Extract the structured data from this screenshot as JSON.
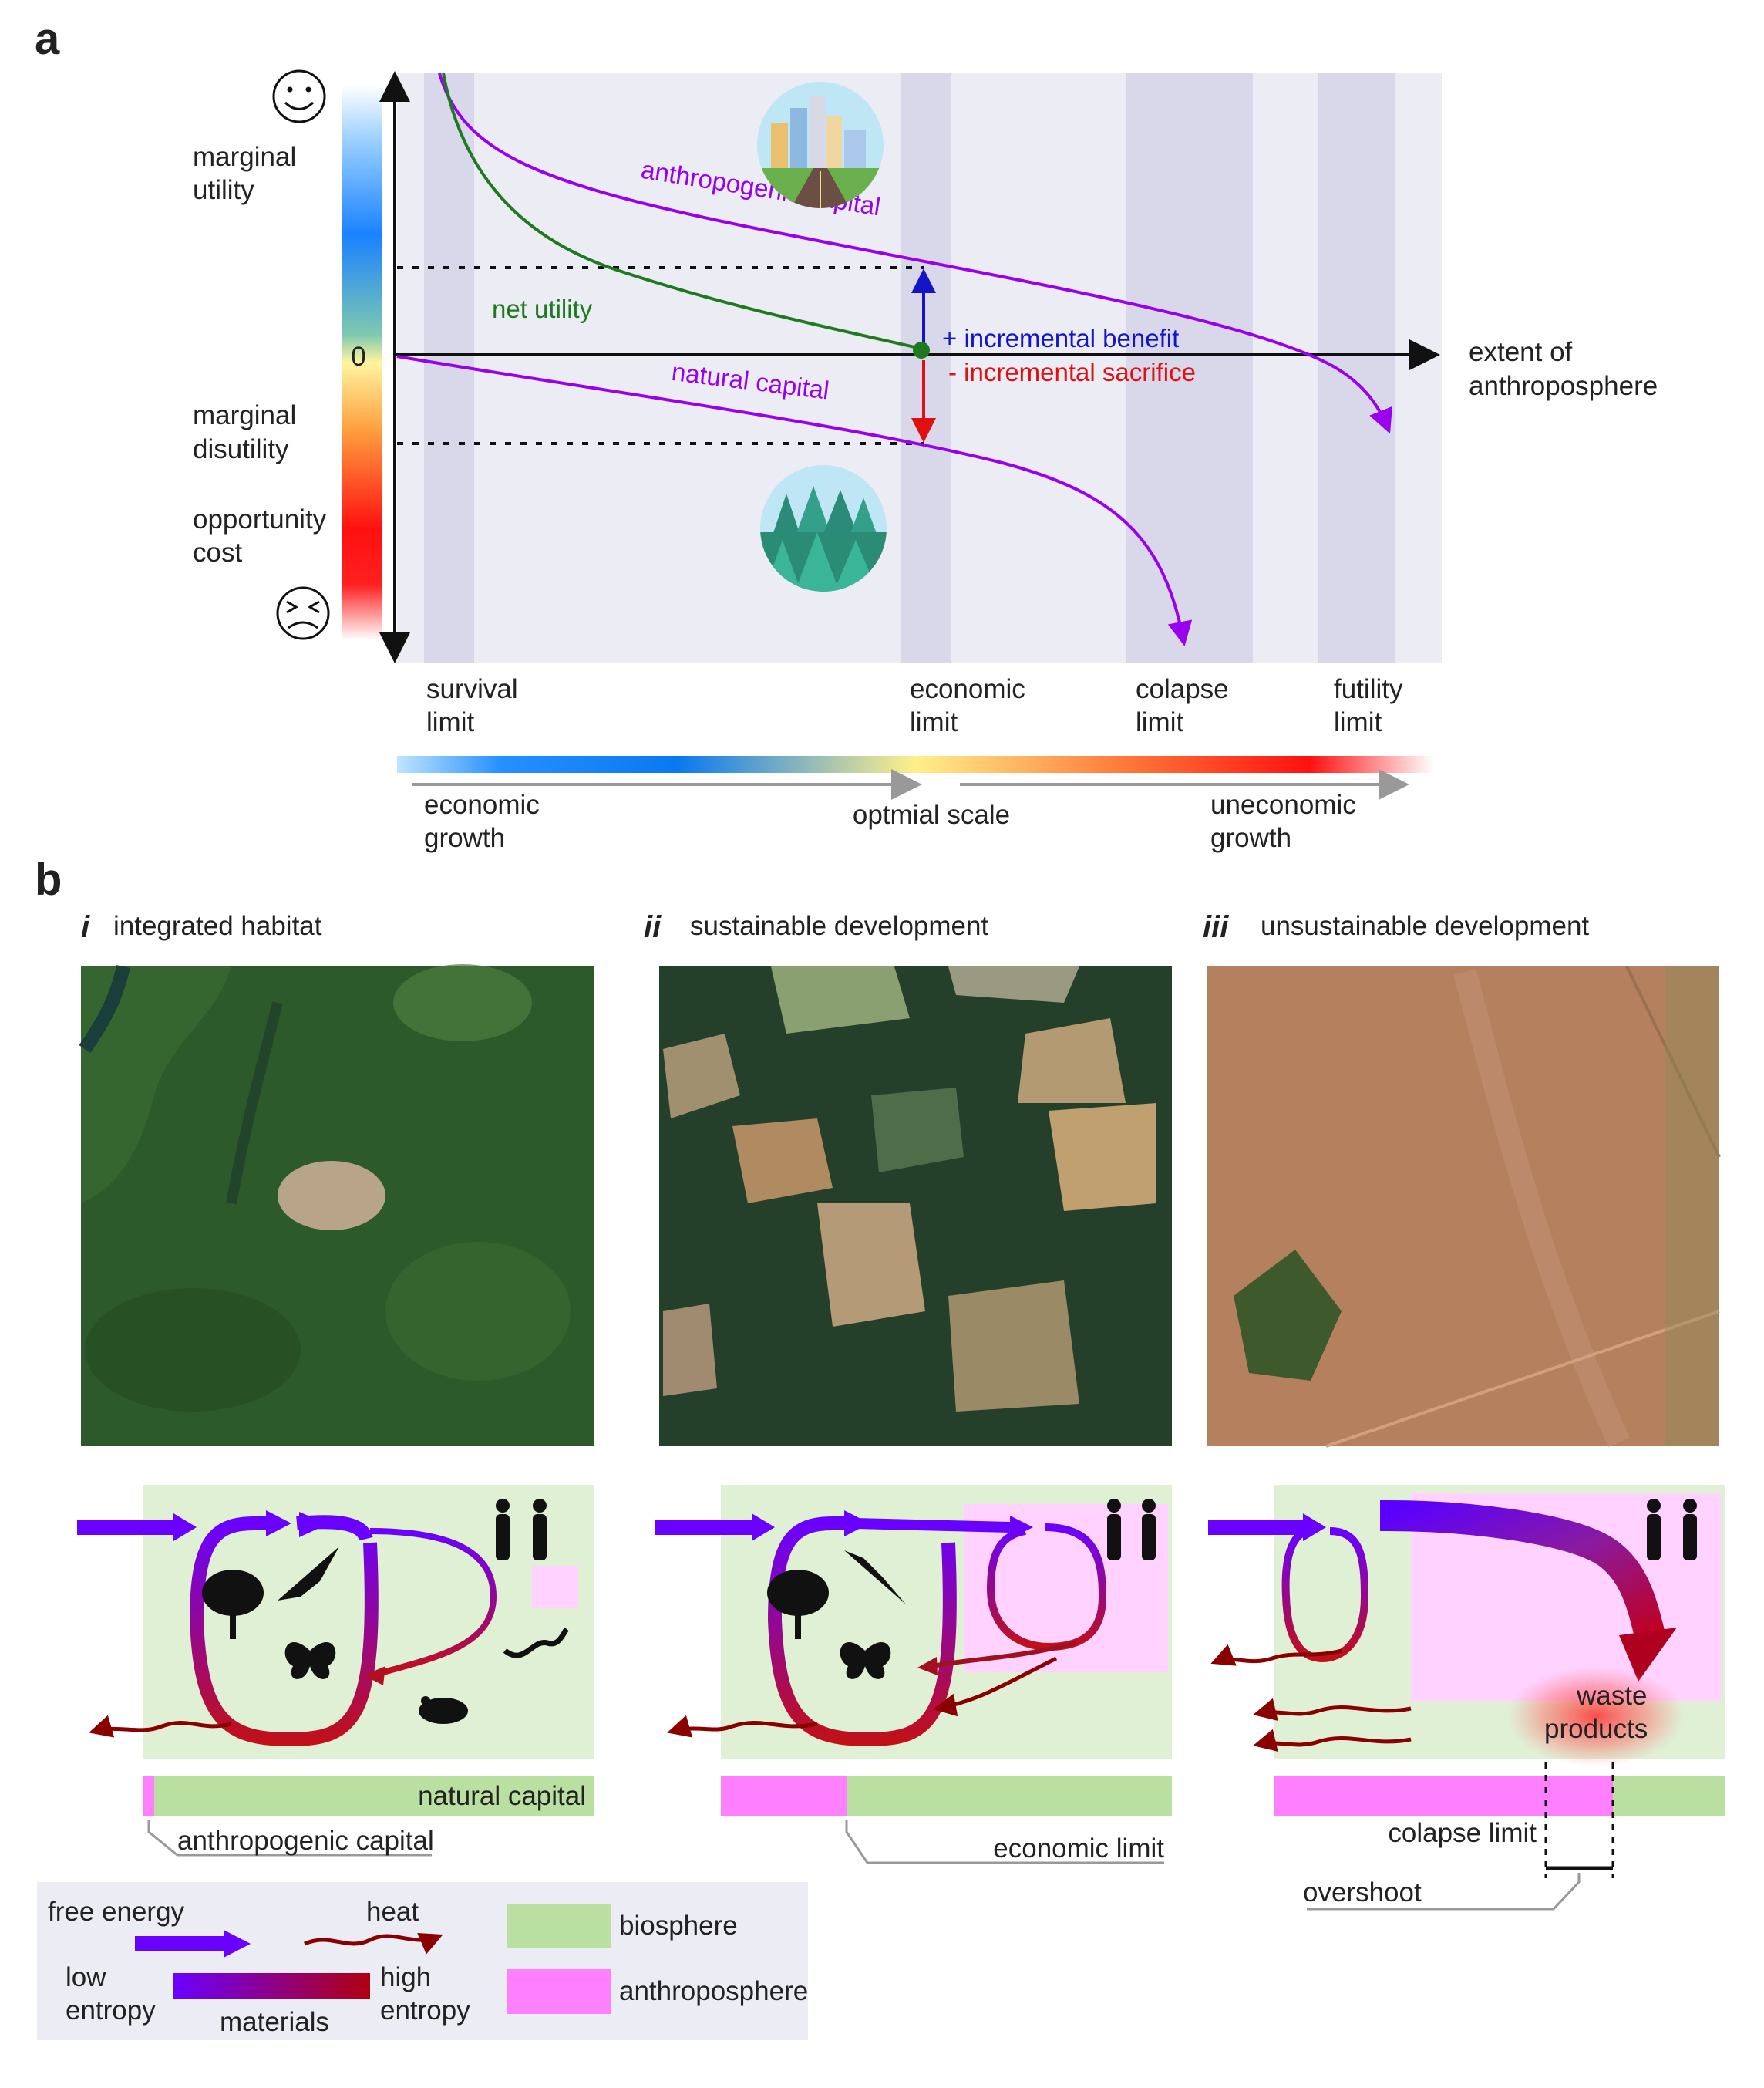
{
  "panel_a": {
    "letter": "a",
    "zero_label": "0",
    "y_top_label_1": "marginal",
    "y_top_label_2": "utility",
    "y_mid_label_1": "marginal",
    "y_mid_label_2": "disutility",
    "y_bot_label_1": "opportunity",
    "y_bot_label_2": "cost",
    "x_axis_label_1": "extent of",
    "x_axis_label_2": "anthroposphere",
    "curve_anthropogenic": "anthropogenic capital",
    "curve_net": "net utility",
    "curve_natural": "natural capital",
    "benefit": "+ incremental benefit",
    "sacrifice": "- incremental sacrifice",
    "limits": [
      {
        "line1": "survival",
        "line2": "limit"
      },
      {
        "line1": "economic",
        "line2": "limit"
      },
      {
        "line1": "colapse",
        "line2": "limit"
      },
      {
        "line1": "futility",
        "line2": "limit"
      }
    ],
    "scale_left_1": "economic",
    "scale_left_2": "growth",
    "scale_mid": "optmial scale",
    "scale_right_1": "uneconomic",
    "scale_right_2": "growth",
    "colors": {
      "capital_curve": "#9900ee",
      "net_curve": "#1f7a1f",
      "benefit": "#1515c8",
      "sacrifice": "#e01010",
      "band": "#d8d8ea",
      "panel_bg": "#ececf4"
    }
  },
  "panel_b": {
    "letter": "b",
    "sub_i_num": "i",
    "sub_i_title": "integrated habitat",
    "sub_ii_num": "ii",
    "sub_ii_title": "sustainable development",
    "sub_iii_num": "iii",
    "sub_iii_title": "unsustainable development",
    "bar_label_natural": "natural capital",
    "bar_label_anthropogenic": "anthropogenic capital",
    "bar_label_economic": "economic limit",
    "bar_label_colapse": "colapse limit",
    "bar_label_overshoot": "overshoot",
    "waste_1": "waste",
    "waste_2": "products",
    "colors": {
      "biosphere": "#dff0d5",
      "anthroposphere": "#ff80ff",
      "bar_green": "#b9e0a0",
      "low_entropy": "#6a00ff",
      "high_entropy": "#b00000"
    }
  },
  "legend": {
    "free_energy": "free energy",
    "heat": "heat",
    "low_1": "low",
    "low_2": "entropy",
    "high_1": "high",
    "high_2": "entropy",
    "materials": "materials",
    "biosphere": "biosphere",
    "anthroposphere": "anthroposphere"
  }
}
